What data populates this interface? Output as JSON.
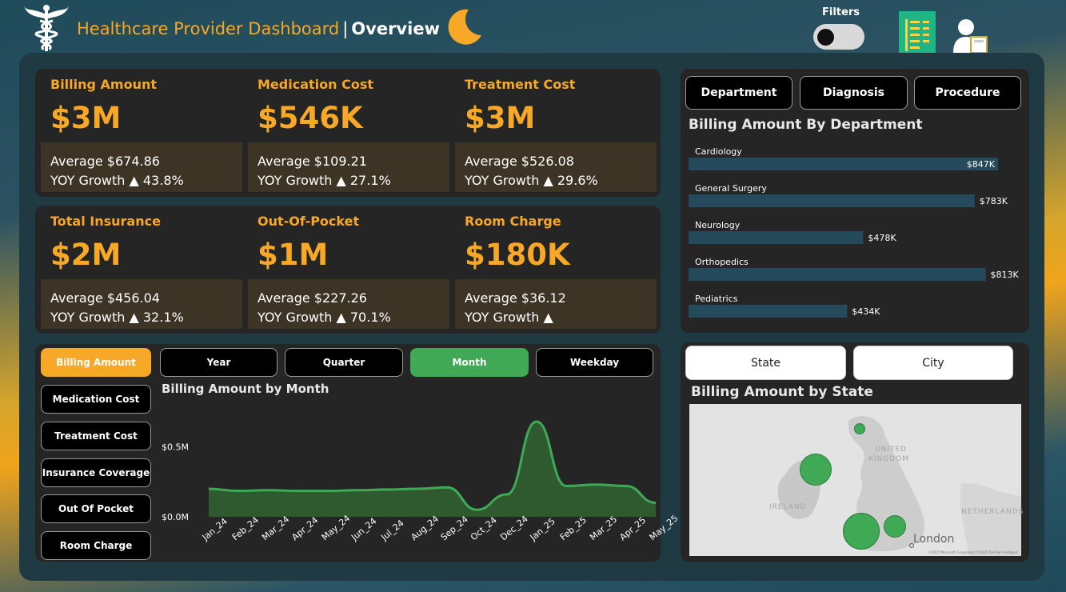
{
  "header": {
    "title_main": "Healthcare Provider Dashboard",
    "title_sep": "|",
    "title_section": "Overview",
    "filters_label": "Filters",
    "logo_icon": "caduceus-icon",
    "theme_icon": "moon-icon",
    "filters_toggle_on": false,
    "report_icon": "document-list-icon",
    "user_icon": "user-icon"
  },
  "colors": {
    "accent": "#f7a827",
    "kpi_sub_bg": "#3d3425",
    "panel_bg": "#252525",
    "main_bg": "#203a44",
    "bar": "#244a5b",
    "line": "#3fa956"
  },
  "kpis": [
    {
      "label": "Billing Amount",
      "value": "$3M",
      "average": "Average $674.86",
      "yoy": "YOY Growth ▲ 43.8%"
    },
    {
      "label": "Medication Cost",
      "value": "$546K",
      "average": "Average $109.21",
      "yoy": "YOY Growth ▲ 27.1%"
    },
    {
      "label": "Treatment Cost",
      "value": "$3M",
      "average": "Average $526.08",
      "yoy": "YOY Growth ▲ 29.6%"
    },
    {
      "label": "Total Insurance",
      "value": "$2M",
      "average": "Average $456.04",
      "yoy": "YOY Growth ▲ 32.1%"
    },
    {
      "label": "Out-Of-Pocket",
      "value": "$1M",
      "average": "Average $227.26",
      "yoy": "YOY Growth ▲ 70.1%"
    },
    {
      "label": "Room Charge",
      "value": "$180K",
      "average": "Average $36.12",
      "yoy": "YOY Growth ▲"
    }
  ],
  "breakdown_tabs": [
    "Department",
    "Diagnosis",
    "Procedure"
  ],
  "department_chart": {
    "title": "Billing Amount By Department",
    "labels": [
      "$847K",
      "$783K",
      "$478K",
      "$813K",
      "$434K"
    ]
  },
  "metric_buttons": [
    "Billing Amount",
    "Medication Cost",
    "Treatment Cost",
    "Insurance Coverage",
    "Out Of Pocket",
    "Room Charge"
  ],
  "metric_selected": "Billing Amount",
  "period_buttons": [
    "Year",
    "Quarter",
    "Month",
    "Weekday"
  ],
  "period_selected": "Month",
  "month_chart": {
    "title": "Billing Amount by Month",
    "y_ticks": [
      "$0.5M",
      "$0.0M"
    ]
  },
  "geo_tabs": [
    "State",
    "City"
  ],
  "map": {
    "title": "Billing Amount by State",
    "labels": {
      "uk_1": "UNITED",
      "uk_2": "KINGDOM",
      "ireland": "IRELAND",
      "netherlands": "NETHERLANDS",
      "london": "London"
    },
    "attribution": "©2025 Microsoft Corporation ©2025 TomTom Feedback",
    "bubble_color": "#3fa956"
  },
  "chart_data": [
    {
      "type": "bar",
      "title": "Billing Amount By Department",
      "orientation": "horizontal",
      "categories": [
        "Cardiology",
        "General Surgery",
        "Neurology",
        "Orthopedics",
        "Pediatrics"
      ],
      "values": [
        847000,
        783000,
        478000,
        813000,
        434000
      ],
      "grid": false
    },
    {
      "type": "area",
      "title": "Billing Amount by Month",
      "x": [
        "Jan_24",
        "Feb_24",
        "Mar_24",
        "Apr_24",
        "May_24",
        "Jun_24",
        "Jul_24",
        "Aug_24",
        "Sep_24",
        "Oct_24",
        "Dec_24",
        "Jan_25",
        "Feb_25",
        "Mar_25",
        "Apr_25",
        "May_25"
      ],
      "values": [
        0.2,
        0.185,
        0.19,
        0.185,
        0.185,
        0.19,
        0.195,
        0.2,
        0.21,
        0.05,
        0.16,
        0.68,
        0.22,
        0.23,
        0.22,
        0.1
      ],
      "yticks": [
        0.5,
        0.0
      ],
      "ylim": [
        0,
        0.8
      ],
      "grid": false
    }
  ]
}
